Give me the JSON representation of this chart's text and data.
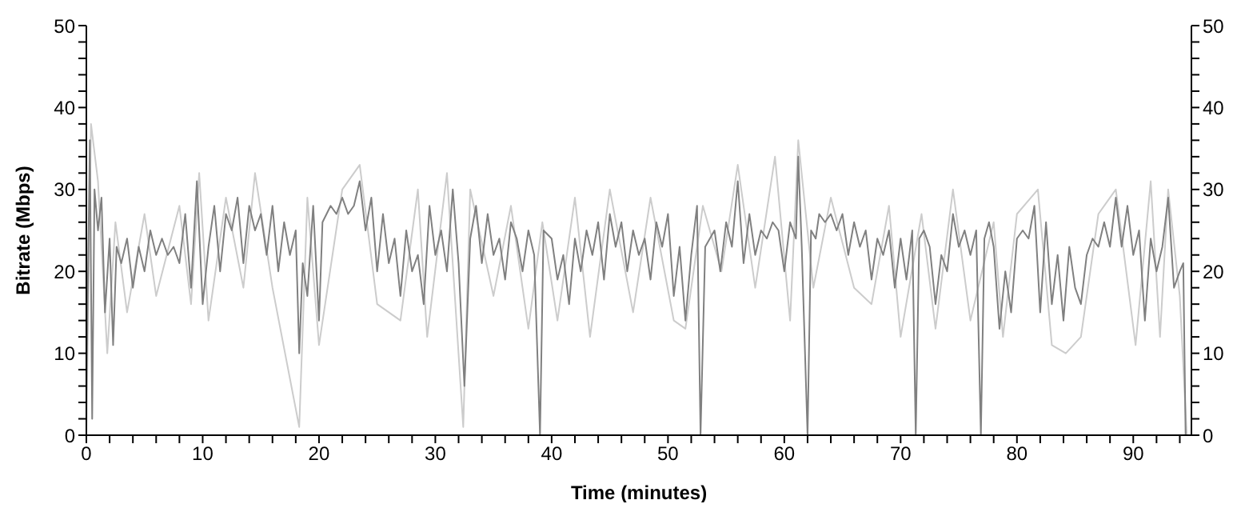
{
  "chart_data": {
    "type": "line",
    "xlabel": "Time (minutes)",
    "ylabel": "Bitrate (Mbps)",
    "xlim": [
      0,
      95
    ],
    "ylim": [
      0,
      50
    ],
    "y2lim": [
      0,
      50
    ],
    "xticks": [
      0,
      {
        "value": 2,
        "label": null
      },
      {
        "value": 4,
        "label": null
      },
      {
        "value": 6,
        "label": null
      },
      {
        "value": 8,
        "label": null
      },
      10,
      {
        "value": 12,
        "label": null
      },
      {
        "value": 14,
        "label": null
      },
      {
        "value": 16,
        "label": null
      },
      {
        "value": 18,
        "label": null
      },
      20,
      {
        "value": 22,
        "label": null
      },
      {
        "value": 24,
        "label": null
      },
      {
        "value": 26,
        "label": null
      },
      {
        "value": 28,
        "label": null
      },
      30,
      {
        "value": 32,
        "label": null
      },
      {
        "value": 34,
        "label": null
      },
      {
        "value": 36,
        "label": null
      },
      {
        "value": 38,
        "label": null
      },
      40,
      {
        "value": 42,
        "label": null
      },
      {
        "value": 44,
        "label": null
      },
      {
        "value": 46,
        "label": null
      },
      {
        "value": 48,
        "label": null
      },
      50,
      {
        "value": 52,
        "label": null
      },
      {
        "value": 54,
        "label": null
      },
      {
        "value": 56,
        "label": null
      },
      {
        "value": 58,
        "label": null
      },
      60,
      {
        "value": 62,
        "label": null
      },
      {
        "value": 64,
        "label": null
      },
      {
        "value": 66,
        "label": null
      },
      {
        "value": 68,
        "label": null
      },
      70,
      {
        "value": 72,
        "label": null
      },
      {
        "value": 74,
        "label": null
      },
      {
        "value": 76,
        "label": null
      },
      {
        "value": 78,
        "label": null
      },
      80,
      {
        "value": 82,
        "label": null
      },
      {
        "value": 84,
        "label": null
      },
      {
        "value": 86,
        "label": null
      },
      {
        "value": 88,
        "label": null
      },
      90,
      {
        "value": 92,
        "label": null
      },
      {
        "value": 94,
        "label": null
      }
    ],
    "yticks": [
      0,
      {
        "value": 2,
        "label": null
      },
      {
        "value": 4,
        "label": null
      },
      {
        "value": 6,
        "label": null
      },
      {
        "value": 8,
        "label": null
      },
      10,
      {
        "value": 12,
        "label": null
      },
      {
        "value": 14,
        "label": null
      },
      {
        "value": 16,
        "label": null
      },
      {
        "value": 18,
        "label": null
      },
      20,
      {
        "value": 22,
        "label": null
      },
      {
        "value": 24,
        "label": null
      },
      {
        "value": 26,
        "label": null
      },
      {
        "value": 28,
        "label": null
      },
      30,
      {
        "value": 32,
        "label": null
      },
      {
        "value": 34,
        "label": null
      },
      {
        "value": 36,
        "label": null
      },
      {
        "value": 38,
        "label": null
      },
      40,
      {
        "value": 42,
        "label": null
      },
      {
        "value": 44,
        "label": null
      },
      {
        "value": 46,
        "label": null
      },
      {
        "value": 48,
        "label": null
      },
      50
    ],
    "y2ticks": [
      0,
      {
        "value": 2,
        "label": null
      },
      {
        "value": 4,
        "label": null
      },
      {
        "value": 6,
        "label": null
      },
      {
        "value": 8,
        "label": null
      },
      10,
      {
        "value": 12,
        "label": null
      },
      {
        "value": 14,
        "label": null
      },
      {
        "value": 16,
        "label": null
      },
      {
        "value": 18,
        "label": null
      },
      20,
      {
        "value": 22,
        "label": null
      },
      {
        "value": 24,
        "label": null
      },
      {
        "value": 26,
        "label": null
      },
      {
        "value": 28,
        "label": null
      },
      30,
      {
        "value": 32,
        "label": null
      },
      {
        "value": 34,
        "label": null
      },
      {
        "value": 36,
        "label": null
      },
      {
        "value": 38,
        "label": null
      },
      40,
      {
        "value": 42,
        "label": null
      },
      {
        "value": 44,
        "label": null
      },
      {
        "value": 46,
        "label": null
      },
      {
        "value": 48,
        "label": null
      },
      50
    ],
    "grid": false,
    "legend": false,
    "marker": "none",
    "line_style": "solid",
    "series": [
      {
        "color": "#cccccc",
        "x": [
          0,
          0.4,
          1,
          1.8,
          2.5,
          3.5,
          5,
          6,
          8,
          9,
          9.7,
          10.5,
          12,
          13.5,
          14.5,
          16,
          18.3,
          19,
          20,
          22,
          23.5,
          25,
          27,
          28.5,
          29.3,
          31,
          32.4,
          33,
          35,
          36.5,
          38,
          39.2,
          40.5,
          42,
          43.3,
          45,
          47,
          48.5,
          50.5,
          51.5,
          53,
          54.6,
          56,
          57.5,
          59.2,
          60.5,
          61.2,
          62.5,
          64,
          66,
          67.5,
          69,
          70,
          71.8,
          73,
          74.5,
          76,
          78,
          78.8,
          80,
          81.8,
          83,
          84.2,
          85.5,
          87,
          88.5,
          90.2,
          91.5,
          92.3,
          93,
          94,
          94.6
        ],
        "values": [
          0,
          38,
          31,
          10,
          26,
          15,
          27,
          17,
          28,
          16,
          32,
          14,
          29,
          18,
          32,
          18,
          1,
          29,
          11,
          30,
          33,
          16,
          14,
          30,
          12,
          32,
          1,
          30,
          17,
          28,
          13,
          26,
          14,
          29,
          12,
          30,
          15,
          29,
          14,
          13,
          28,
          20,
          33,
          18,
          34,
          14,
          36,
          18,
          29,
          18,
          16,
          28,
          12,
          27,
          13,
          30,
          14,
          26,
          12,
          27,
          30,
          11,
          10,
          12,
          27,
          30,
          11,
          31,
          12,
          30,
          17,
          0
        ]
      },
      {
        "color": "#808080",
        "x": [
          0,
          0.3,
          0.5,
          0.7,
          1,
          1.3,
          1.6,
          2,
          2.3,
          2.6,
          3,
          3.5,
          4,
          4.5,
          5,
          5.5,
          6,
          6.5,
          7,
          7.5,
          8,
          8.5,
          9,
          9.5,
          10,
          10.5,
          11,
          11.5,
          12,
          12.5,
          13,
          13.5,
          14,
          14.5,
          15,
          15.5,
          16,
          16.5,
          17,
          17.5,
          18,
          18.3,
          18.6,
          19,
          19.5,
          20,
          20.3,
          21,
          21.5,
          22,
          22.5,
          23,
          23.5,
          24,
          24.5,
          25,
          25.5,
          26,
          26.5,
          27,
          27.5,
          28,
          28.5,
          29,
          29.5,
          30,
          30.5,
          31,
          31.5,
          32,
          32.5,
          33,
          33.5,
          34,
          34.5,
          35,
          35.5,
          36,
          36.5,
          37,
          37.5,
          38,
          38.5,
          39,
          39.3,
          40,
          40.5,
          41,
          41.5,
          42,
          42.5,
          43,
          43.5,
          44,
          44.5,
          45,
          45.5,
          46,
          46.5,
          47,
          47.5,
          48,
          48.5,
          49,
          49.5,
          50,
          50.5,
          51,
          51.5,
          52,
          52.5,
          52.8,
          53.2,
          54,
          54.5,
          55,
          55.5,
          56,
          56.5,
          57,
          57.5,
          58,
          58.5,
          59,
          59.5,
          60,
          60.5,
          61,
          61.2,
          61.5,
          62,
          62.3,
          62.7,
          63,
          63.5,
          64,
          64.5,
          65,
          65.5,
          66,
          66.5,
          67,
          67.5,
          68,
          68.5,
          69,
          69.5,
          70,
          70.5,
          71,
          71.3,
          71.6,
          72,
          72.5,
          73,
          73.5,
          74,
          74.5,
          75,
          75.5,
          76,
          76.5,
          76.9,
          77.2,
          77.6,
          78,
          78.5,
          79,
          79.5,
          80,
          80.5,
          81,
          81.5,
          82,
          82.5,
          83,
          83.5,
          84,
          84.5,
          85,
          85.5,
          86,
          86.5,
          87,
          87.5,
          88,
          88.5,
          89,
          89.5,
          90,
          90.5,
          91,
          91.5,
          92,
          92.5,
          93,
          93.5,
          94,
          94.3,
          94.5
        ],
        "values": [
          5,
          36,
          2,
          30,
          25,
          29,
          15,
          24,
          11,
          23,
          21,
          24,
          18,
          23,
          20,
          25,
          22,
          24,
          22,
          23,
          21,
          27,
          18,
          31,
          16,
          23,
          28,
          20,
          27,
          25,
          29,
          21,
          28,
          25,
          27,
          22,
          28,
          20,
          26,
          22,
          25,
          10,
          21,
          17,
          28,
          14,
          26,
          28,
          27,
          29,
          27,
          28,
          31,
          25,
          29,
          20,
          27,
          21,
          24,
          17,
          25,
          20,
          22,
          16,
          28,
          22,
          25,
          20,
          30,
          21,
          6,
          24,
          28,
          21,
          27,
          22,
          24,
          19,
          26,
          24,
          20,
          25,
          22,
          0,
          25,
          24,
          19,
          22,
          16,
          24,
          20,
          25,
          22,
          26,
          19,
          27,
          23,
          26,
          20,
          25,
          22,
          24,
          19,
          26,
          23,
          27,
          17,
          23,
          14,
          22,
          28,
          0,
          23,
          25,
          20,
          26,
          23,
          31,
          21,
          27,
          22,
          25,
          24,
          26,
          25,
          20,
          26,
          24,
          34,
          23,
          0,
          25,
          24,
          27,
          26,
          27,
          25,
          27,
          22,
          26,
          23,
          25,
          19,
          24,
          22,
          25,
          18,
          24,
          19,
          25,
          0,
          24,
          25,
          23,
          16,
          22,
          20,
          27,
          23,
          25,
          22,
          25,
          0,
          24,
          26,
          23,
          13,
          20,
          15,
          24,
          25,
          24,
          28,
          15,
          26,
          16,
          22,
          14,
          23,
          18,
          16,
          22,
          24,
          23,
          26,
          23,
          29,
          23,
          28,
          22,
          25,
          14,
          24,
          20,
          23,
          29,
          18,
          20,
          21,
          0
        ]
      }
    ]
  }
}
